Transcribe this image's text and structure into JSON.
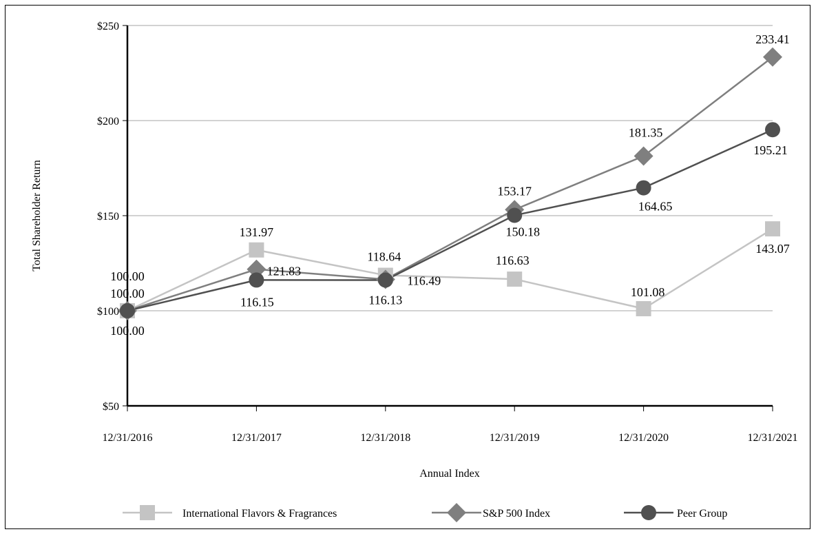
{
  "chart_data": {
    "type": "line",
    "categories": [
      "12/31/2016",
      "12/31/2017",
      "12/31/2018",
      "12/31/2019",
      "12/31/2020",
      "12/31/2021"
    ],
    "xlabel": "Annual Index",
    "ylabel": "Total Shareholder Return",
    "ylim": [
      50,
      250
    ],
    "yticks": [
      50,
      100,
      150,
      200,
      250
    ],
    "ytick_labels": [
      "$50",
      "$100",
      "$150",
      "$200",
      "$250"
    ],
    "grid": true,
    "legend_position": "bottom",
    "series": [
      {
        "name": "International Flavors & Fragrances",
        "values": [
          100.0,
          131.97,
          118.64,
          116.63,
          101.08,
          143.07
        ],
        "labels": [
          "100.00",
          "131.97",
          "118.64",
          "116.63",
          "101.08",
          "143.07"
        ],
        "marker": "square",
        "color": "#c4c4c4"
      },
      {
        "name": "S&P 500 Index",
        "values": [
          100.0,
          121.83,
          116.49,
          153.17,
          181.35,
          233.41
        ],
        "labels": [
          "100.00",
          "121.83",
          "116.49",
          "153.17",
          "181.35",
          "233.41"
        ],
        "marker": "diamond",
        "color": "#7f7f7f"
      },
      {
        "name": "Peer Group",
        "values": [
          100.0,
          116.15,
          116.13,
          150.18,
          164.65,
          195.21
        ],
        "labels": [
          "100.00",
          "116.15",
          "116.13",
          "150.18",
          "164.65",
          "195.21"
        ],
        "marker": "circle",
        "color": "#505050"
      }
    ]
  }
}
